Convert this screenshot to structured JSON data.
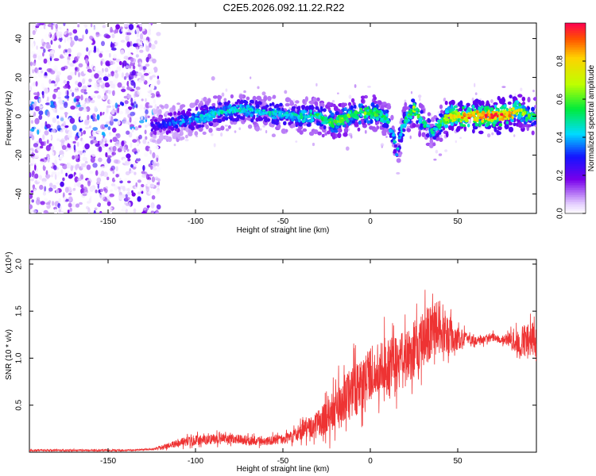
{
  "title": "C2E5.2026.092.11.22.R22",
  "colors": {
    "line": "#ee3333",
    "axis": "#000000",
    "background": "#ffffff"
  },
  "chart_data": [
    {
      "type": "heatmap",
      "title": "C2E5.2026.092.11.22.R22",
      "xlabel": "Height of straight line (km)",
      "ylabel": "Frequency (Hz)",
      "xlim": [
        -195,
        95
      ],
      "ylim": [
        -50,
        48
      ],
      "xticks": [
        -150,
        -100,
        -50,
        0,
        50
      ],
      "yticks": [
        -40,
        -20,
        0,
        20,
        40
      ],
      "grid": false,
      "colorbar": {
        "label": "Normalized spectral amplitude",
        "range": [
          0,
          1
        ],
        "ticks": [
          0.0,
          0.2,
          0.4,
          0.6,
          0.8
        ],
        "tick_labels": [
          "0.0",
          "0.2",
          "0.4",
          "0.6",
          "0.8"
        ]
      },
      "ridge": {
        "x": [
          -125,
          -110,
          -100,
          -90,
          -80,
          -70,
          -60,
          -50,
          -40,
          -30,
          -25,
          -20,
          -10,
          0,
          5,
          10,
          13,
          15,
          17,
          20,
          25,
          30,
          35,
          40,
          45,
          50,
          60,
          70,
          80,
          85,
          90,
          95
        ],
        "frequency": [
          -5,
          -3,
          -1,
          1,
          3,
          3,
          2,
          1,
          0,
          0,
          -2,
          -3,
          1,
          2,
          1,
          -2,
          -8,
          -20,
          -10,
          -2,
          4,
          -3,
          -8,
          -4,
          0,
          0,
          0,
          0,
          1,
          4,
          0,
          0
        ],
        "amplitude": [
          0.25,
          0.35,
          0.4,
          0.45,
          0.45,
          0.45,
          0.45,
          0.45,
          0.45,
          0.5,
          0.55,
          0.6,
          0.6,
          0.6,
          0.55,
          0.5,
          0.45,
          0.4,
          0.45,
          0.5,
          0.6,
          0.5,
          0.45,
          0.5,
          0.8,
          0.85,
          0.9,
          0.9,
          0.85,
          0.75,
          0.6,
          0.5
        ]
      },
      "noise_region": {
        "x_range": [
          -195,
          -125
        ],
        "amplitude_range": [
          0.0,
          0.25
        ]
      }
    },
    {
      "type": "line",
      "xlabel": "Height of straight line (km)",
      "ylabel": "SNR (10 * v/v)",
      "yscale_label": "(x10⁴)",
      "xlim": [
        -195,
        95
      ],
      "ylim": [
        0,
        2.05
      ],
      "xticks": [
        -150,
        -100,
        -50,
        0,
        50
      ],
      "yticks": [
        0.5,
        1.0,
        1.5,
        2.0
      ],
      "ytick_labels": [
        "0.5",
        "1.0",
        "1.5",
        "2.0"
      ],
      "grid": false,
      "x": [
        -195,
        -180,
        -160,
        -140,
        -125,
        -120,
        -110,
        -100,
        -90,
        -80,
        -70,
        -60,
        -50,
        -45,
        -40,
        -35,
        -30,
        -25,
        -20,
        -15,
        -10,
        -5,
        0,
        5,
        10,
        15,
        20,
        25,
        30,
        35,
        40,
        45,
        50,
        55,
        60,
        65,
        70,
        75,
        80,
        85,
        90,
        95
      ],
      "mean": [
        0.02,
        0.02,
        0.02,
        0.02,
        0.03,
        0.05,
        0.1,
        0.13,
        0.14,
        0.14,
        0.13,
        0.12,
        0.14,
        0.16,
        0.22,
        0.26,
        0.3,
        0.36,
        0.45,
        0.55,
        0.65,
        0.72,
        0.85,
        0.9,
        0.88,
        0.95,
        1.0,
        1.1,
        1.2,
        1.3,
        1.35,
        1.25,
        1.2,
        1.22,
        1.18,
        1.2,
        1.22,
        1.2,
        1.2,
        1.15,
        1.2,
        1.18
      ],
      "spread": [
        0.01,
        0.01,
        0.01,
        0.01,
        0.01,
        0.02,
        0.05,
        0.06,
        0.06,
        0.06,
        0.06,
        0.05,
        0.06,
        0.07,
        0.1,
        0.12,
        0.16,
        0.2,
        0.26,
        0.3,
        0.32,
        0.32,
        0.3,
        0.32,
        0.38,
        0.35,
        0.35,
        0.34,
        0.32,
        0.35,
        0.32,
        0.22,
        0.15,
        0.06,
        0.05,
        0.05,
        0.05,
        0.05,
        0.08,
        0.18,
        0.2,
        0.18
      ]
    }
  ]
}
